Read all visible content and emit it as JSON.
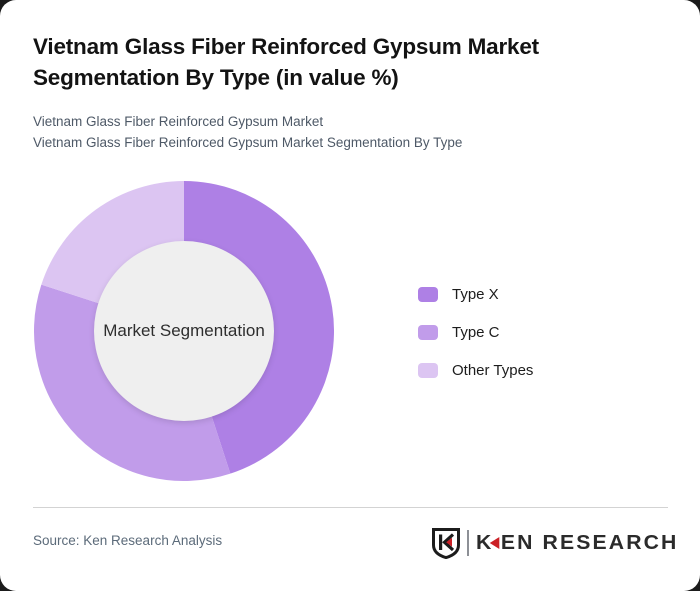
{
  "page": {
    "background": "#1b1b1b",
    "card_background": "#ffffff"
  },
  "header": {
    "title": "Vietnam Glass Fiber Reinforced Gypsum Market Segmentation By Type (in value %)",
    "subtitle_line1": "Vietnam Glass Fiber Reinforced Gypsum Market",
    "subtitle_line2": "Vietnam Glass Fiber Reinforced Gypsum Market Segmentation By Type"
  },
  "chart_data": {
    "type": "pie",
    "variant": "donut",
    "title": "Vietnam Glass Fiber Reinforced Gypsum Market Segmentation By Type (in value %)",
    "labels": [
      "Type X",
      "Type C",
      "Other Types"
    ],
    "values": [
      45,
      35,
      20
    ],
    "unit": "%",
    "colors": [
      "#ae80e5",
      "#c19cea",
      "#dcc5f2"
    ],
    "hole_color": "#efefef",
    "center_label": "Market Segmentation",
    "start_angle_deg": 0,
    "direction": "clockwise",
    "legend_position": "right"
  },
  "footer": {
    "source": "Source: Ken Research Analysis",
    "logo": {
      "k": "K",
      "rest": "EN RESEARCH",
      "accent_color": "#cb2026"
    }
  }
}
